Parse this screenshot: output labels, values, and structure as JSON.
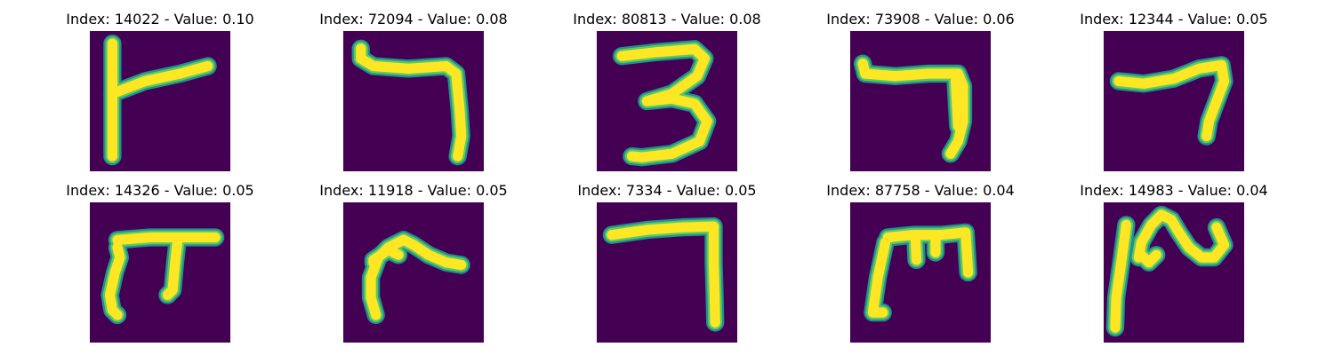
{
  "figure": {
    "colors": {
      "background": "#440154",
      "stroke_core": "#fde725",
      "stroke_mid": "#5ec962",
      "stroke_edge": "#21918c"
    },
    "panels": [
      {
        "title": "Index: 14022 - Value: 0.10",
        "index": 14022,
        "value": 0.1,
        "glyph": "7-left-stem"
      },
      {
        "title": "Index: 72094 - Value: 0.08",
        "index": 72094,
        "value": 0.08,
        "glyph": "7-hook"
      },
      {
        "title": "Index: 80813 - Value: 0.08",
        "index": 80813,
        "value": 0.08,
        "glyph": "3"
      },
      {
        "title": "Index: 73908 - Value: 0.06",
        "index": 73908,
        "value": 0.06,
        "glyph": "7-thick"
      },
      {
        "title": "Index: 12344 - Value: 0.05",
        "index": 12344,
        "value": 0.05,
        "glyph": "7-short"
      },
      {
        "title": "Index: 14326 - Value: 0.05",
        "index": 14326,
        "value": 0.05,
        "glyph": "pi-shape"
      },
      {
        "title": "Index: 11918 - Value: 0.05",
        "index": 11918,
        "value": 0.05,
        "glyph": "r-shape"
      },
      {
        "title": "Index: 7334 - Value: 0.05",
        "index": 7334,
        "value": 0.05,
        "glyph": "7-long"
      },
      {
        "title": "Index: 87758 - Value: 0.04",
        "index": 87758,
        "value": 0.04,
        "glyph": "m-shape"
      },
      {
        "title": "Index: 14983 - Value: 0.04",
        "index": 14983,
        "value": 0.04,
        "glyph": "n-loop"
      }
    ]
  }
}
